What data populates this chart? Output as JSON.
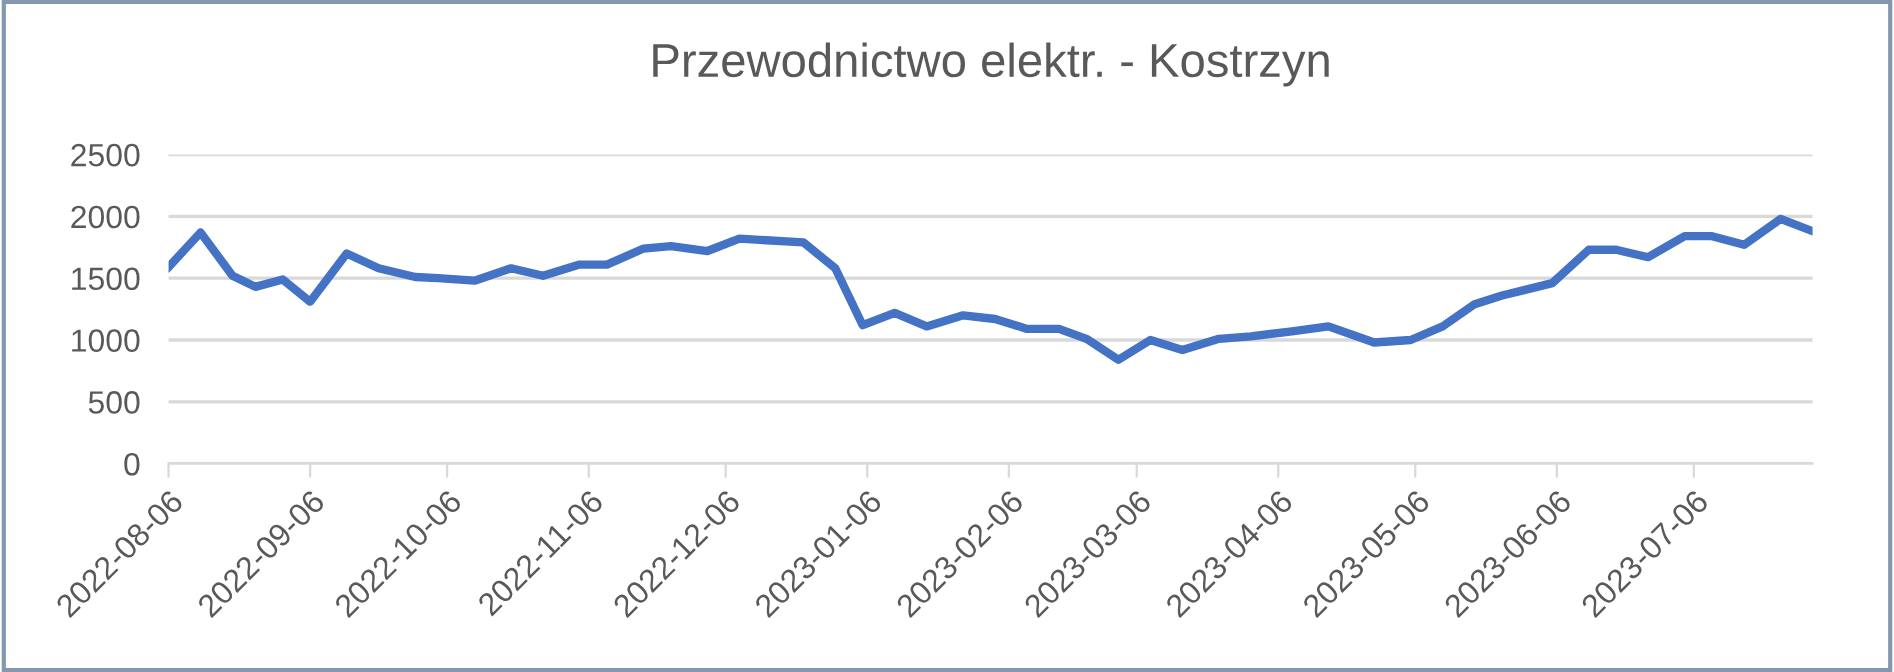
{
  "chart_data": {
    "type": "line",
    "title": "Przewodnictwo elektr. - Kostrzyn",
    "x": [
      "2022-08-06",
      "2022-08-13",
      "2022-08-20",
      "2022-08-25",
      "2022-08-31",
      "2022-09-06",
      "2022-09-14",
      "2022-09-21",
      "2022-09-29",
      "2022-10-04",
      "2022-10-12",
      "2022-10-20",
      "2022-10-27",
      "2022-11-04",
      "2022-11-10",
      "2022-11-18",
      "2022-11-24",
      "2022-12-02",
      "2022-12-09",
      "2022-12-23",
      "2022-12-30",
      "2023-01-05",
      "2023-01-12",
      "2023-01-19",
      "2023-01-27",
      "2023-02-03",
      "2023-02-10",
      "2023-02-17",
      "2023-02-23",
      "2023-03-02",
      "2023-03-09",
      "2023-03-16",
      "2023-03-24",
      "2023-03-31",
      "2023-04-09",
      "2023-04-17",
      "2023-04-27",
      "2023-05-05",
      "2023-05-12",
      "2023-05-19",
      "2023-05-25",
      "2023-06-05",
      "2023-06-13",
      "2023-06-19",
      "2023-06-26",
      "2023-07-04",
      "2023-07-10",
      "2023-07-17",
      "2023-07-25",
      "2023-08-01"
    ],
    "series": [
      {
        "color": "#4472c4",
        "values": [
          1590,
          1870,
          1520,
          1430,
          1490,
          1310,
          1700,
          1580,
          1510,
          1500,
          1480,
          1580,
          1520,
          1610,
          1610,
          1740,
          1760,
          1720,
          1820,
          1790,
          1580,
          1120,
          1220,
          1110,
          1200,
          1170,
          1090,
          1090,
          1010,
          840,
          1000,
          920,
          1010,
          1030,
          1070,
          1110,
          980,
          1000,
          1110,
          1290,
          1360,
          1460,
          1730,
          1730,
          1670,
          1840,
          1840,
          1770,
          1980,
          1880
        ]
      }
    ],
    "xlim": [
      "2022-08-06",
      "2023-08-01"
    ],
    "xticks": [
      {
        "value": "2022-08-06",
        "label": "2022-08-06"
      },
      {
        "value": "2022-09-06",
        "label": "2022-09-06"
      },
      {
        "value": "2022-10-06",
        "label": "2022-10-06"
      },
      {
        "value": "2022-11-06",
        "label": "2022-11-06"
      },
      {
        "value": "2022-12-06",
        "label": "2022-12-06"
      },
      {
        "value": "2023-01-06",
        "label": "2023-01-06"
      },
      {
        "value": "2023-02-06",
        "label": "2023-02-06"
      },
      {
        "value": "2023-03-06",
        "label": "2023-03-06"
      },
      {
        "value": "2023-04-06",
        "label": "2023-04-06"
      },
      {
        "value": "2023-05-06",
        "label": "2023-05-06"
      },
      {
        "value": "2023-06-06",
        "label": "2023-06-06"
      },
      {
        "value": "2023-07-06",
        "label": "2023-07-06"
      }
    ],
    "ylim": [
      0,
      2500
    ],
    "yticks": [
      0,
      500,
      1000,
      1500,
      2000,
      2500
    ],
    "grid": "y",
    "legend": false,
    "marker": "none",
    "line_style": "solid"
  }
}
